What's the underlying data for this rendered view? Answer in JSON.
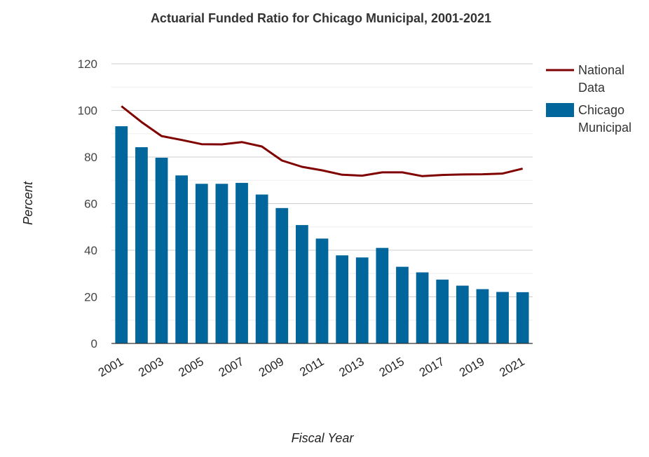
{
  "chart_data": {
    "type": "bar",
    "title": "Actuarial Funded Ratio for Chicago Municipal, 2001-2021",
    "xlabel": "Fiscal Year",
    "ylabel": "Percent",
    "ylim": [
      0,
      120
    ],
    "yticks": [
      0,
      20,
      40,
      60,
      80,
      100,
      120
    ],
    "grid": true,
    "legend_position": "right",
    "categories": [
      "2001",
      "2002",
      "2003",
      "2004",
      "2005",
      "2006",
      "2007",
      "2008",
      "2009",
      "2010",
      "2011",
      "2012",
      "2013",
      "2014",
      "2015",
      "2016",
      "2017",
      "2018",
      "2019",
      "2020",
      "2021"
    ],
    "xtick_labels": [
      "2001",
      "2003",
      "2005",
      "2007",
      "2009",
      "2011",
      "2013",
      "2015",
      "2017",
      "2019",
      "2021"
    ],
    "series": [
      {
        "name": "National Data",
        "type": "line",
        "color": "#800000",
        "legend_lines": [
          "National",
          "Data"
        ],
        "values": [
          101.8,
          95,
          89,
          87.3,
          85.5,
          85.4,
          86.4,
          84.5,
          78.5,
          75.8,
          74.3,
          72.4,
          72,
          73.4,
          73.4,
          71.8,
          72.3,
          72.5,
          72.6,
          72.9,
          75
        ]
      },
      {
        "name": "Chicago Municipal",
        "type": "bar",
        "color": "#00669b",
        "legend_lines": [
          "Chicago",
          "Municipal"
        ],
        "values": [
          93.2,
          84.2,
          79.7,
          72.1,
          68.5,
          68.5,
          68.9,
          63.9,
          58.1,
          50.8,
          45,
          37.8,
          36.9,
          41,
          32.9,
          30.5,
          27.4,
          24.8,
          23.3,
          22.1,
          22
        ]
      }
    ]
  }
}
